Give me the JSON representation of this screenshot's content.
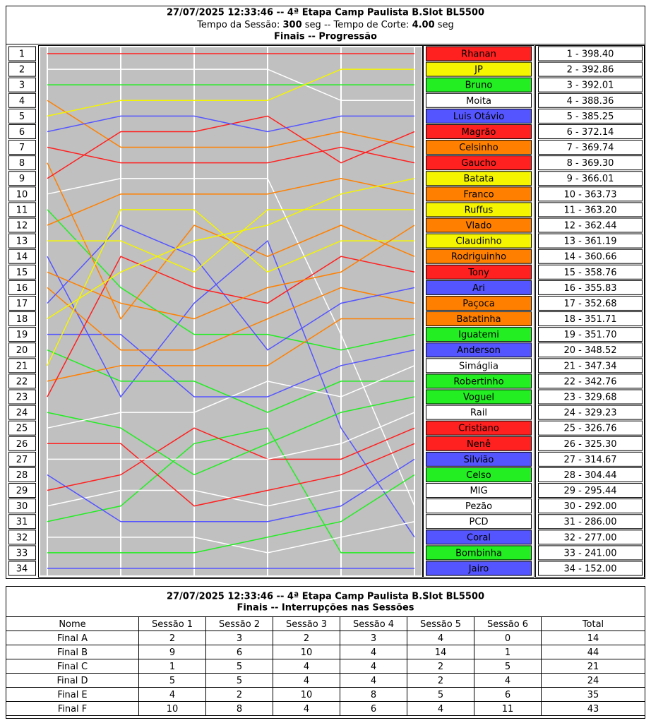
{
  "header": {
    "title": "27/07/2025 12:33:46 -- 4ª Etapa Camp Paulista B.Slot BL5500",
    "session_label": "Tempo da Sessão: ",
    "session_time": "300",
    "cut_label": " seg -- Tempo de Corte: ",
    "cut_time": "4.00",
    "unit": " seg",
    "subtitle": "Finais -- Progressão"
  },
  "chart_data": {
    "type": "line",
    "categories": [
      null,
      null,
      null,
      null,
      null,
      null
    ],
    "ylim": [
      1,
      34
    ],
    "yticks": [
      1,
      2,
      3,
      4,
      5,
      6,
      7,
      8,
      9,
      10,
      11,
      12,
      13,
      14,
      15,
      16,
      17,
      18,
      19,
      20,
      21,
      22,
      23,
      24,
      25,
      26,
      27,
      28,
      29,
      30,
      31,
      32,
      33,
      34
    ],
    "series": [
      {
        "name": "Rhanan",
        "color": "#ff2020",
        "values": [
          1,
          1,
          1,
          1,
          1,
          1
        ]
      },
      {
        "name": "JP",
        "color": "#f5f500",
        "values": [
          5,
          4,
          4,
          4,
          2,
          2
        ]
      },
      {
        "name": "Bruno",
        "color": "#22ee22",
        "values": [
          3,
          3,
          3,
          3,
          3,
          3
        ]
      },
      {
        "name": "Moita",
        "color": "#ffffff",
        "values": [
          2,
          2,
          2,
          2,
          4,
          4
        ]
      },
      {
        "name": "Luis Otávio",
        "color": "#5555ff",
        "values": [
          6,
          5,
          5,
          6,
          5,
          5
        ]
      },
      {
        "name": "Magrão",
        "color": "#ff2020",
        "values": [
          9,
          6,
          6,
          5,
          8,
          6
        ]
      },
      {
        "name": "Celsinho",
        "color": "#ff8000",
        "values": [
          4,
          7,
          7,
          7,
          6,
          7
        ]
      },
      {
        "name": "Gaucho",
        "color": "#ff2020",
        "values": [
          7,
          8,
          8,
          8,
          7,
          8
        ]
      },
      {
        "name": "Batata",
        "color": "#f5f500",
        "values": [
          18,
          15,
          13,
          12,
          10,
          9
        ]
      },
      {
        "name": "Franco",
        "color": "#ff8000",
        "values": [
          12,
          10,
          10,
          10,
          9,
          10
        ]
      },
      {
        "name": "Ruffus",
        "color": "#f5f500",
        "values": [
          13,
          13,
          15,
          11,
          11,
          11
        ]
      },
      {
        "name": "Vlado",
        "color": "#ff8000",
        "values": [
          15,
          17,
          18,
          16,
          15,
          12
        ]
      },
      {
        "name": "Claudinho",
        "color": "#f5f500",
        "values": [
          21,
          11,
          11,
          15,
          13,
          13
        ]
      },
      {
        "name": "Rodriguinho",
        "color": "#ff8000",
        "values": [
          8,
          18,
          12,
          14,
          12,
          14
        ]
      },
      {
        "name": "Tony",
        "color": "#ff2020",
        "values": [
          23,
          14,
          16,
          17,
          14,
          15
        ]
      },
      {
        "name": "Ari",
        "color": "#5555ff",
        "values": [
          17,
          12,
          14,
          20,
          17,
          16
        ]
      },
      {
        "name": "Paçoca",
        "color": "#ff8000",
        "values": [
          16,
          20,
          20,
          18,
          16,
          17
        ]
      },
      {
        "name": "Batatinha",
        "color": "#ff8000",
        "values": [
          22,
          21,
          21,
          21,
          18,
          18
        ]
      },
      {
        "name": "Iguatemi",
        "color": "#22ee22",
        "values": [
          11,
          16,
          19,
          19,
          20,
          19
        ]
      },
      {
        "name": "Anderson",
        "color": "#5555ff",
        "values": [
          19,
          19,
          23,
          23,
          21,
          20
        ]
      },
      {
        "name": "Simáglia",
        "color": "#ffffff",
        "values": [
          25,
          24,
          24,
          22,
          23,
          21
        ]
      },
      {
        "name": "Robertinho",
        "color": "#22ee22",
        "values": [
          20,
          22,
          22,
          24,
          22,
          22
        ]
      },
      {
        "name": "Voguel",
        "color": "#22ee22",
        "values": [
          24,
          25,
          28,
          26,
          24,
          23
        ]
      },
      {
        "name": "Rail",
        "color": "#ffffff",
        "values": [
          27,
          27,
          27,
          27,
          26,
          24
        ]
      },
      {
        "name": "Cristiano",
        "color": "#ff2020",
        "values": [
          29,
          28,
          25,
          27,
          27,
          25
        ]
      },
      {
        "name": "Nenê",
        "color": "#ff2020",
        "values": [
          26,
          26,
          30,
          29,
          28,
          26
        ]
      },
      {
        "name": "Silvião",
        "color": "#5555ff",
        "values": [
          28,
          31,
          31,
          31,
          30,
          27
        ]
      },
      {
        "name": "Celso",
        "color": "#22ee22",
        "values": [
          33,
          33,
          33,
          32,
          31,
          28
        ]
      },
      {
        "name": "MIG",
        "color": "#ffffff",
        "values": [
          30,
          29,
          29,
          30,
          29,
          29
        ]
      },
      {
        "name": "Pezão",
        "color": "#ffffff",
        "values": [
          10,
          9,
          9,
          9,
          19,
          30
        ]
      },
      {
        "name": "PCD",
        "color": "#ffffff",
        "values": [
          32,
          32,
          32,
          33,
          32,
          31
        ]
      },
      {
        "name": "Coral",
        "color": "#5555ff",
        "values": [
          14,
          23,
          17,
          13,
          25,
          32
        ]
      },
      {
        "name": "Bombinha",
        "color": "#22ee22",
        "values": [
          31,
          30,
          26,
          25,
          33,
          33
        ]
      },
      {
        "name": "Jairo",
        "color": "#5555ff",
        "values": [
          34,
          34,
          34,
          34,
          34,
          34
        ]
      }
    ],
    "results": [
      "1 - 398.40",
      "2 - 392.86",
      "3 - 392.01",
      "4 - 388.36",
      "5 - 385.25",
      "6 - 372.14",
      "7 - 369.74",
      "8 - 369.30",
      "9 - 366.01",
      "10 - 363.73",
      "11 - 363.20",
      "12 - 362.44",
      "13 - 361.19",
      "14 - 360.66",
      "15 - 358.76",
      "16 - 355.83",
      "17 - 352.68",
      "18 - 351.71",
      "19 - 351.70",
      "20 - 348.52",
      "21 - 347.34",
      "22 - 342.76",
      "23 - 329.68",
      "24 - 329.23",
      "25 - 326.76",
      "26 - 325.30",
      "27 - 314.67",
      "28 - 304.44",
      "29 - 295.44",
      "30 - 292.00",
      "31 - 286.00",
      "32 - 277.00",
      "33 - 241.00",
      "34 - 152.00"
    ]
  },
  "table": {
    "title": "27/07/2025 12:33:46 -- 4ª Etapa Camp Paulista B.Slot BL5500",
    "subtitle": "Finais -- Interrupções nas Sessões",
    "columns": [
      "Nome",
      "Sessão 1",
      "Sessão 2",
      "Sessão 3",
      "Sessão 4",
      "Sessão 5",
      "Sessão 6",
      "Total"
    ],
    "rows": [
      [
        "Final A",
        2,
        3,
        2,
        3,
        4,
        0,
        14
      ],
      [
        "Final B",
        9,
        6,
        10,
        4,
        14,
        1,
        44
      ],
      [
        "Final C",
        1,
        5,
        4,
        4,
        2,
        5,
        21
      ],
      [
        "Final D",
        5,
        5,
        4,
        4,
        2,
        4,
        24
      ],
      [
        "Final E",
        4,
        2,
        10,
        8,
        5,
        6,
        35
      ],
      [
        "Final F",
        10,
        8,
        4,
        6,
        4,
        11,
        43
      ]
    ]
  }
}
